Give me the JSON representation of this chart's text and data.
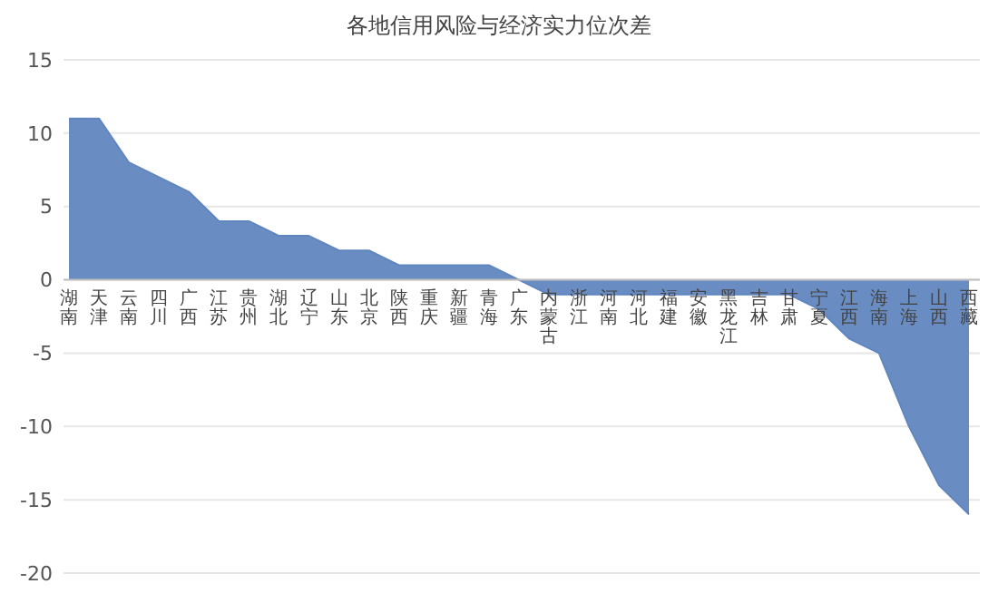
{
  "chart_data": {
    "type": "area",
    "title": "各地信用风险与经济实力位次差",
    "categories": [
      "湖南",
      "天津",
      "云南",
      "四川",
      "广西",
      "江苏",
      "贵州",
      "湖北",
      "辽宁",
      "山东",
      "北京",
      "陕西",
      "重庆",
      "新疆",
      "青海",
      "广东",
      "内蒙古",
      "浙江",
      "河南",
      "河北",
      "福建",
      "安徽",
      "黑龙江",
      "吉林",
      "甘肃",
      "宁夏",
      "江西",
      "海南",
      "上海",
      "山西",
      "西藏"
    ],
    "values": [
      11,
      11,
      8,
      7,
      6,
      4,
      4,
      3,
      3,
      2,
      2,
      1,
      1,
      1,
      1,
      0,
      -1,
      -1,
      -1,
      -1,
      -1,
      -1,
      -1,
      -1,
      -1,
      -2,
      -4,
      -5,
      -10,
      -14,
      -16
    ],
    "color": "#6186bf",
    "ylim": [
      -20,
      15
    ],
    "yticks": [
      -20,
      -15,
      -10,
      -5,
      0,
      5,
      10,
      15
    ],
    "grid": "y"
  }
}
